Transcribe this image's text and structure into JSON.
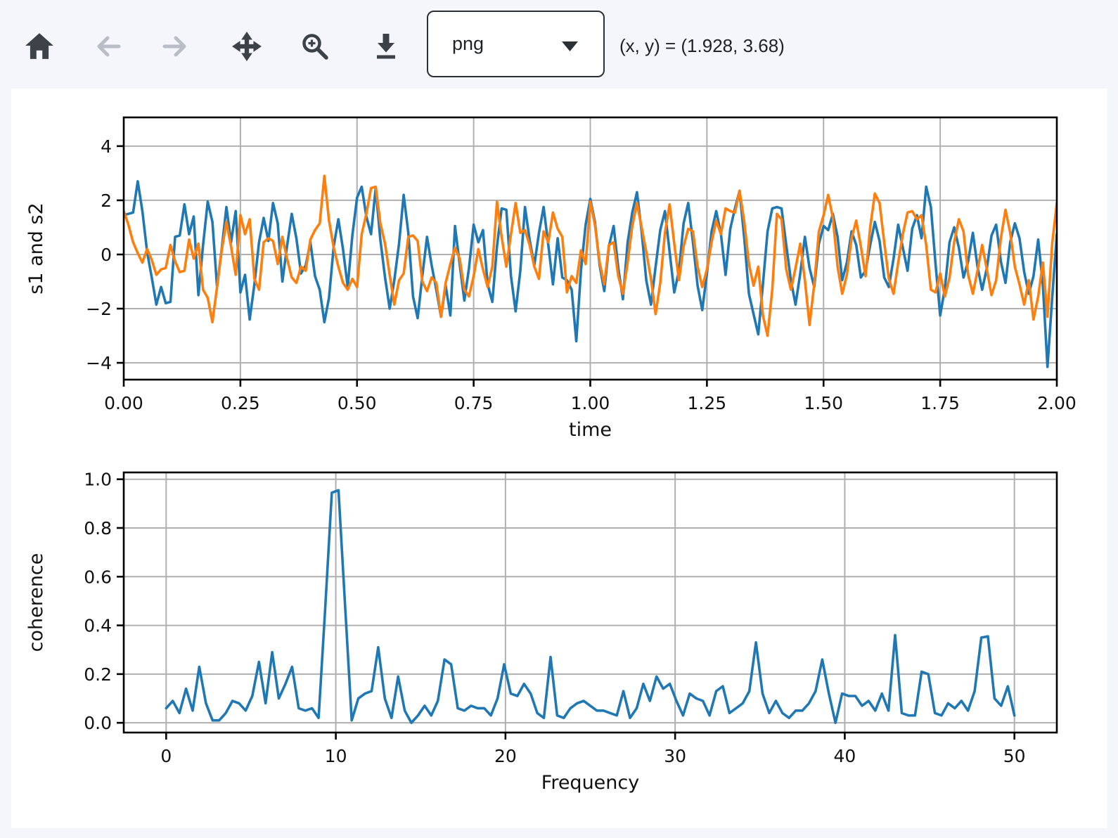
{
  "toolbar": {
    "buttons": [
      {
        "name": "home",
        "label": "Home",
        "enabled": true
      },
      {
        "name": "back",
        "label": "Back",
        "enabled": false
      },
      {
        "name": "forward",
        "label": "Forward",
        "enabled": false
      },
      {
        "name": "pan",
        "label": "Pan",
        "enabled": true
      },
      {
        "name": "zoom",
        "label": "Zoom to rectangle",
        "enabled": true
      },
      {
        "name": "download",
        "label": "Download",
        "enabled": true
      }
    ],
    "format_select": {
      "value": "png"
    },
    "coordinates": "(x, y) = (1.928, 3.68)"
  },
  "colors": {
    "s1_line": "#1f77b4",
    "s2_line": "#ff7f0e",
    "coherence_line": "#1f77b4",
    "grid": "#b0b0b0",
    "spine": "#000000",
    "icon_enabled": "#3d4249",
    "icon_disabled": "#b9bdc5",
    "page_background": "#f5f6fc",
    "figure_background": "#ffffff"
  },
  "chart_data": [
    {
      "type": "line",
      "title": "",
      "xlabel": "time",
      "ylabel": "s1 and s2",
      "xlim": [
        0,
        2
      ],
      "ylim": [
        -4.62,
        5.06
      ],
      "grid": true,
      "legend": null,
      "xticks": [
        0,
        0.25,
        0.5,
        0.75,
        1.0,
        1.25,
        1.5,
        1.75,
        2.0
      ],
      "xtick_labels": [
        "0.00",
        "0.25",
        "0.50",
        "0.75",
        "1.00",
        "1.25",
        "1.50",
        "1.75",
        "2.00"
      ],
      "yticks": [
        -4,
        -2,
        0,
        2,
        4
      ],
      "ytick_labels": [
        "−4",
        "−2",
        "0",
        "2",
        "4"
      ],
      "x_start": 0,
      "dx": 0.01,
      "series": [
        {
          "name": "s1",
          "color": "#1f77b4",
          "values": [
            1.45,
            1.5,
            1.55,
            2.7,
            1.6,
            0.1,
            -0.85,
            -1.85,
            -1.2,
            -1.8,
            -1.75,
            0.65,
            0.7,
            1.85,
            0.75,
            1.4,
            -1.5,
            0.35,
            1.95,
            1.2,
            -1.2,
            0.2,
            1.75,
            0.45,
            1.6,
            -1.4,
            -0.75,
            -2.4,
            -1.1,
            0.45,
            1.35,
            0.5,
            1.9,
            1.15,
            -1.0,
            0.3,
            1.5,
            0.6,
            -0.7,
            -0.4,
            0.45,
            -0.8,
            -1.3,
            -2.5,
            -1.6,
            0.3,
            1.3,
            0.2,
            -1.2,
            0.7,
            2.1,
            2.5,
            1.4,
            0.75,
            2.45,
            0.55,
            -0.85,
            -2.0,
            -0.95,
            0.4,
            2.2,
            0.8,
            -1.55,
            -2.35,
            -0.8,
            0.65,
            -0.4,
            -1.3,
            -2.3,
            -1.15,
            -2.25,
            1.05,
            -0.35,
            -1.7,
            -0.5,
            1.1,
            0.45,
            0.9,
            -1.1,
            -1.75,
            0.3,
            1.7,
            1.65,
            -0.8,
            -2.1,
            -0.6,
            1.75,
            0.55,
            -0.4,
            0.8,
            1.75,
            0.35,
            -1.1,
            0.6,
            -0.85,
            -0.95,
            -1.3,
            -3.2,
            -0.6,
            1.1,
            2.05,
            1.2,
            -0.4,
            -1.35,
            0.3,
            1.05,
            -0.5,
            -1.65,
            0.45,
            1.55,
            2.3,
            0.85,
            -0.95,
            -1.85,
            -0.45,
            0.9,
            1.6,
            0.1,
            -1.4,
            -0.6,
            1.15,
            1.9,
            0.45,
            -1.15,
            -2.05,
            -0.7,
            0.85,
            1.6,
            0.75,
            -0.75,
            0.95,
            1.7,
            2.35,
            0.6,
            -1.45,
            -2.2,
            -2.95,
            -1.1,
            0.85,
            1.7,
            1.75,
            1.7,
            0.35,
            -0.95,
            -1.85,
            -0.7,
            0.65,
            -0.5,
            -1.2,
            0.4,
            1.05,
            0.9,
            1.5,
            0.65,
            -0.95,
            -0.3,
            0.85,
            0.35,
            -0.85,
            -0.6,
            0.35,
            1.2,
            0.5,
            -0.85,
            -1.2,
            -0.15,
            1.1,
            0.25,
            -0.6,
            0.95,
            1.45,
            0.6,
            2.5,
            1.75,
            -0.35,
            -2.25,
            -1.25,
            0.45,
            1.0,
            0.25,
            -0.85,
            -0.25,
            0.8,
            -0.45,
            -1.3,
            -0.5,
            0.7,
            1.1,
            -0.25,
            -1.05,
            0.45,
            1.15,
            0.6,
            -0.65,
            -1.45,
            -0.8,
            0.55,
            -1.1,
            -4.15,
            -1.6,
            0.75
          ]
        },
        {
          "name": "s2",
          "color": "#ff7f0e",
          "values": [
            1.6,
            1.1,
            0.45,
            0.05,
            -0.3,
            0.2,
            -0.2,
            -0.75,
            -0.55,
            -0.5,
            0.35,
            -0.25,
            -0.65,
            -0.6,
            0.55,
            -0.15,
            0.4,
            -1.3,
            -1.6,
            -2.5,
            -1.2,
            0.15,
            1.2,
            0.3,
            -0.75,
            1.45,
            0.75,
            1.3,
            -0.9,
            -1.3,
            0.45,
            0.6,
            0.5,
            -0.35,
            0.65,
            -0.15,
            -0.85,
            -1.05,
            -0.45,
            -0.6,
            0.55,
            0.9,
            1.15,
            2.9,
            1.25,
            0.25,
            -0.45,
            -1.05,
            -1.3,
            -0.9,
            -1.2,
            0.75,
            1.5,
            2.45,
            2.5,
            1.15,
            0.4,
            -0.75,
            -1.85,
            -0.95,
            -0.7,
            0.65,
            0.7,
            0.5,
            -1.0,
            -1.35,
            -0.85,
            -1.05,
            -2.3,
            -1.05,
            -0.35,
            0.25,
            -0.15,
            -1.3,
            -1.55,
            -0.8,
            0.2,
            -0.55,
            -1.2,
            -0.45,
            1.95,
            0.65,
            -0.45,
            0.75,
            1.9,
            0.8,
            0.9,
            0.35,
            -0.45,
            -0.9,
            0.85,
            0.45,
            1.55,
            0.95,
            0.65,
            -1.4,
            -0.8,
            -1.05,
            0.15,
            -0.35,
            1.95,
            1.1,
            -0.3,
            -1.1,
            0.35,
            0.45,
            -0.8,
            -1.45,
            -0.3,
            1.05,
            1.9,
            1.0,
            0.1,
            -0.9,
            -2.2,
            -1.05,
            0.8,
            1.85,
            0.4,
            -0.95,
            0.3,
            0.95,
            0.85,
            -0.45,
            -1.2,
            -0.55,
            0.45,
            1.25,
            0.75,
            1.7,
            1.6,
            1.55,
            2.35,
            1.2,
            -0.35,
            -1.15,
            -0.45,
            -2.25,
            -3.0,
            -1.3,
            1.5,
            1.3,
            -0.55,
            -1.3,
            -0.5,
            0.4,
            -0.95,
            -2.6,
            -1.1,
            0.85,
            1.45,
            2.2,
            1.35,
            -0.45,
            -1.45,
            -0.75,
            0.6,
            1.25,
            0.3,
            -0.8,
            1.0,
            2.25,
            1.9,
            0.45,
            -0.9,
            -1.45,
            -0.3,
            0.75,
            1.55,
            1.6,
            1.3,
            1.45,
            0.35,
            -1.3,
            -1.4,
            -0.7,
            -1.55,
            -0.85,
            0.45,
            1.3,
            0.85,
            -0.75,
            -1.45,
            -0.6,
            0.35,
            -0.55,
            -1.5,
            -0.95,
            0.6,
            1.65,
            0.8,
            -0.45,
            -1.1,
            -1.85,
            -0.95,
            -2.4,
            -1.55,
            -0.3,
            -2.3,
            0.4,
            1.9
          ]
        }
      ]
    },
    {
      "type": "line",
      "title": "",
      "xlabel": "Frequency",
      "ylabel": "coherence",
      "xlim": [
        -2.5,
        52.5
      ],
      "ylim": [
        -0.04,
        1.028
      ],
      "grid": true,
      "legend": null,
      "xticks": [
        0,
        10,
        20,
        30,
        40,
        50
      ],
      "xtick_labels": [
        "0",
        "10",
        "20",
        "30",
        "40",
        "50"
      ],
      "yticks": [
        0,
        0.2,
        0.4,
        0.6,
        0.8,
        1.0
      ],
      "ytick_labels": [
        "0.0",
        "0.2",
        "0.4",
        "0.6",
        "0.8",
        "1.0"
      ],
      "x_start": 0,
      "dx": 0.390625,
      "series": [
        {
          "name": "coherence",
          "color": "#1f77b4",
          "values": [
            0.06,
            0.09,
            0.04,
            0.14,
            0.05,
            0.23,
            0.08,
            0.01,
            0.01,
            0.04,
            0.09,
            0.08,
            0.05,
            0.11,
            0.25,
            0.08,
            0.29,
            0.1,
            0.16,
            0.23,
            0.06,
            0.05,
            0.06,
            0.02,
            0.47,
            0.945,
            0.955,
            0.48,
            0.01,
            0.1,
            0.12,
            0.13,
            0.31,
            0.1,
            0.02,
            0.19,
            0.05,
            0.0,
            0.03,
            0.07,
            0.03,
            0.09,
            0.26,
            0.24,
            0.06,
            0.05,
            0.07,
            0.06,
            0.06,
            0.03,
            0.1,
            0.24,
            0.12,
            0.11,
            0.16,
            0.12,
            0.04,
            0.02,
            0.27,
            0.03,
            0.02,
            0.06,
            0.08,
            0.09,
            0.07,
            0.05,
            0.05,
            0.04,
            0.03,
            0.13,
            0.02,
            0.06,
            0.16,
            0.09,
            0.19,
            0.14,
            0.16,
            0.09,
            0.03,
            0.12,
            0.1,
            0.09,
            0.03,
            0.13,
            0.15,
            0.04,
            0.06,
            0.08,
            0.13,
            0.33,
            0.12,
            0.04,
            0.09,
            0.04,
            0.02,
            0.05,
            0.05,
            0.08,
            0.13,
            0.26,
            0.12,
            0.0,
            0.12,
            0.11,
            0.11,
            0.07,
            0.09,
            0.05,
            0.12,
            0.05,
            0.36,
            0.04,
            0.03,
            0.03,
            0.21,
            0.2,
            0.04,
            0.03,
            0.08,
            0.06,
            0.09,
            0.05,
            0.13,
            0.35,
            0.355,
            0.1,
            0.07,
            0.15,
            0.03
          ]
        }
      ]
    }
  ]
}
